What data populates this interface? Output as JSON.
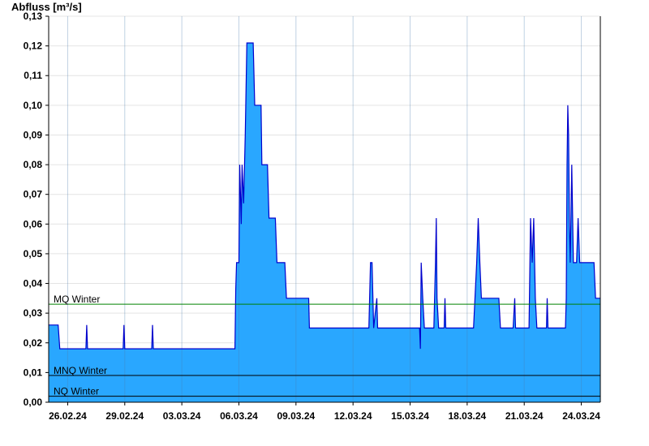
{
  "chart_data": {
    "type": "area",
    "title": "",
    "ylabel": "Abfluss [m³/s]",
    "xlabel": "",
    "ylim": [
      0,
      0.13
    ],
    "y_ticks": [
      "0,00",
      "0,01",
      "0,02",
      "0,03",
      "0,04",
      "0,05",
      "0,06",
      "0,07",
      "0,08",
      "0,09",
      "0,10",
      "0,11",
      "0,12",
      "0,13"
    ],
    "y_tick_values": [
      0,
      0.01,
      0.02,
      0.03,
      0.04,
      0.05,
      0.06,
      0.07,
      0.08,
      0.09,
      0.1,
      0.11,
      0.12,
      0.13
    ],
    "x_range": [
      "2024-02-25",
      "2024-03-25"
    ],
    "x_ticks": [
      "26.02.24",
      "29.02.24",
      "03.03.24",
      "06.03.24",
      "09.03.24",
      "12.03.24",
      "15.03.24",
      "18.03.24",
      "21.03.24",
      "24.03.24"
    ],
    "x_tick_dates": [
      "2024-02-26",
      "2024-02-29",
      "2024-03-03",
      "2024-03-06",
      "2024-03-09",
      "2024-03-12",
      "2024-03-15",
      "2024-03-18",
      "2024-03-21",
      "2024-03-24"
    ],
    "grid": true,
    "colors": {
      "fill": "#29a7ff",
      "line": "#0000cc",
      "mq_line": "#008000",
      "ref_line": "#000000"
    },
    "reference_lines": [
      {
        "label": "MQ Winter",
        "value": 0.033
      },
      {
        "label": "MNQ Winter",
        "value": 0.009
      },
      {
        "label": "NQ Winter",
        "value": 0.002
      }
    ],
    "series": [
      {
        "points": [
          [
            "2024-02-25T00:00",
            0.026
          ],
          [
            "2024-02-25T12:00",
            0.026
          ],
          [
            "2024-02-25T14:00",
            0.018
          ],
          [
            "2024-02-26T23:00",
            0.018
          ],
          [
            "2024-02-27T00:00",
            0.026
          ],
          [
            "2024-02-27T01:00",
            0.018
          ],
          [
            "2024-02-28T22:00",
            0.018
          ],
          [
            "2024-02-28T23:00",
            0.026
          ],
          [
            "2024-02-29T00:00",
            0.018
          ],
          [
            "2024-03-01T10:00",
            0.018
          ],
          [
            "2024-03-01T11:00",
            0.026
          ],
          [
            "2024-03-01T12:00",
            0.018
          ],
          [
            "2024-03-05T19:00",
            0.018
          ],
          [
            "2024-03-05T20:00",
            0.038
          ],
          [
            "2024-03-05T21:00",
            0.047
          ],
          [
            "2024-03-06T00:00",
            0.047
          ],
          [
            "2024-03-06T01:00",
            0.08
          ],
          [
            "2024-03-06T03:00",
            0.06
          ],
          [
            "2024-03-06T04:00",
            0.08
          ],
          [
            "2024-03-06T06:00",
            0.067
          ],
          [
            "2024-03-06T08:00",
            0.09
          ],
          [
            "2024-03-06T10:00",
            0.121
          ],
          [
            "2024-03-06T18:00",
            0.121
          ],
          [
            "2024-03-06T20:00",
            0.1
          ],
          [
            "2024-03-07T04:00",
            0.1
          ],
          [
            "2024-03-07T05:00",
            0.08
          ],
          [
            "2024-03-07T12:00",
            0.08
          ],
          [
            "2024-03-07T14:00",
            0.062
          ],
          [
            "2024-03-07T22:00",
            0.062
          ],
          [
            "2024-03-08T00:00",
            0.047
          ],
          [
            "2024-03-08T10:00",
            0.047
          ],
          [
            "2024-03-08T12:00",
            0.035
          ],
          [
            "2024-03-09T16:00",
            0.035
          ],
          [
            "2024-03-09T17:00",
            0.025
          ],
          [
            "2024-03-12T20:00",
            0.025
          ],
          [
            "2024-03-12T22:00",
            0.047
          ],
          [
            "2024-03-13T00:00",
            0.047
          ],
          [
            "2024-03-13T02:00",
            0.025
          ],
          [
            "2024-03-13T06:00",
            0.035
          ],
          [
            "2024-03-13T07:00",
            0.025
          ],
          [
            "2024-03-15T12:00",
            0.025
          ],
          [
            "2024-03-15T13:00",
            0.018
          ],
          [
            "2024-03-15T14:00",
            0.047
          ],
          [
            "2024-03-15T16:00",
            0.035
          ],
          [
            "2024-03-15T18:00",
            0.025
          ],
          [
            "2024-03-16T06:00",
            0.025
          ],
          [
            "2024-03-16T08:00",
            0.047
          ],
          [
            "2024-03-16T09:00",
            0.062
          ],
          [
            "2024-03-16T10:00",
            0.035
          ],
          [
            "2024-03-16T12:00",
            0.025
          ],
          [
            "2024-03-16T19:00",
            0.025
          ],
          [
            "2024-03-16T20:00",
            0.035
          ],
          [
            "2024-03-16T21:00",
            0.025
          ],
          [
            "2024-03-18T08:00",
            0.025
          ],
          [
            "2024-03-18T12:00",
            0.047
          ],
          [
            "2024-03-18T14:00",
            0.062
          ],
          [
            "2024-03-18T16:00",
            0.047
          ],
          [
            "2024-03-18T18:00",
            0.035
          ],
          [
            "2024-03-19T16:00",
            0.035
          ],
          [
            "2024-03-19T18:00",
            0.025
          ],
          [
            "2024-03-20T10:00",
            0.025
          ],
          [
            "2024-03-20T12:00",
            0.035
          ],
          [
            "2024-03-20T13:00",
            0.025
          ],
          [
            "2024-03-21T06:00",
            0.025
          ],
          [
            "2024-03-21T08:00",
            0.062
          ],
          [
            "2024-03-21T10:00",
            0.047
          ],
          [
            "2024-03-21T12:00",
            0.062
          ],
          [
            "2024-03-21T14:00",
            0.035
          ],
          [
            "2024-03-21T16:00",
            0.025
          ],
          [
            "2024-03-22T04:00",
            0.025
          ],
          [
            "2024-03-22T05:00",
            0.035
          ],
          [
            "2024-03-22T06:00",
            0.025
          ],
          [
            "2024-03-23T04:00",
            0.025
          ],
          [
            "2024-03-23T05:00",
            0.035
          ],
          [
            "2024-03-23T06:00",
            0.08
          ],
          [
            "2024-03-23T07:00",
            0.1
          ],
          [
            "2024-03-23T08:00",
            0.09
          ],
          [
            "2024-03-23T09:00",
            0.06
          ],
          [
            "2024-03-23T10:00",
            0.047
          ],
          [
            "2024-03-23T12:00",
            0.08
          ],
          [
            "2024-03-23T14:00",
            0.047
          ],
          [
            "2024-03-23T18:00",
            0.047
          ],
          [
            "2024-03-23T20:00",
            0.062
          ],
          [
            "2024-03-23T22:00",
            0.047
          ],
          [
            "2024-03-24T16:00",
            0.047
          ],
          [
            "2024-03-24T18:00",
            0.035
          ],
          [
            "2024-03-25T00:00",
            0.035
          ]
        ]
      }
    ]
  }
}
